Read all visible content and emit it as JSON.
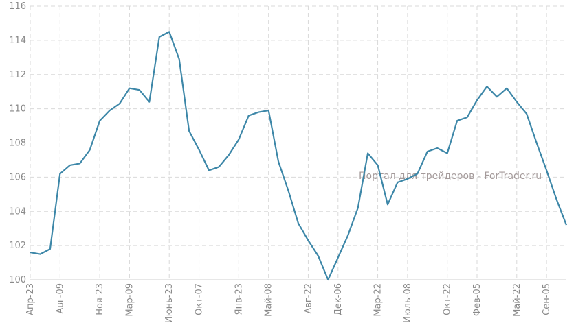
{
  "watermark": "Портал для трейдеров - ForTrader.ru",
  "chart_data": {
    "type": "line",
    "title": "",
    "xlabel": "",
    "ylabel": "",
    "ylim": [
      100,
      116
    ],
    "yticks": [
      100,
      102,
      104,
      106,
      108,
      110,
      112,
      114,
      116
    ],
    "grid": true,
    "x_tick_labels": [
      "Апр-23",
      "Авг-09",
      "Ноя-23",
      "Мар-09",
      "Июнь-23",
      "Окт-07",
      "Янв-23",
      "Май-08",
      "Авг-22",
      "Дек-06",
      "Мар-22",
      "Июль-08",
      "Окт-22",
      "Фев-05",
      "Май-22",
      "Сен-05"
    ],
    "x_tick_indices": [
      0,
      3,
      7,
      10,
      14,
      17,
      21,
      24,
      28,
      31,
      35,
      38,
      42,
      45,
      49,
      52
    ],
    "series": [
      {
        "color": "#3d87a8",
        "values": [
          101.6,
          101.5,
          101.8,
          106.2,
          106.7,
          106.8,
          107.6,
          109.3,
          109.9,
          110.3,
          111.2,
          111.1,
          110.4,
          114.2,
          114.5,
          112.9,
          108.7,
          107.6,
          106.4,
          106.6,
          107.3,
          108.2,
          109.6,
          109.8,
          109.9,
          106.9,
          105.2,
          103.3,
          102.3,
          101.4,
          100.0,
          101.3,
          102.6,
          104.2,
          107.4,
          106.7,
          104.4,
          105.7,
          105.9,
          106.2,
          107.5,
          107.7,
          107.4,
          109.3,
          109.5,
          110.5,
          111.3,
          110.7,
          111.2,
          110.4,
          109.7,
          108.0,
          106.4,
          104.7,
          103.2
        ]
      }
    ]
  }
}
